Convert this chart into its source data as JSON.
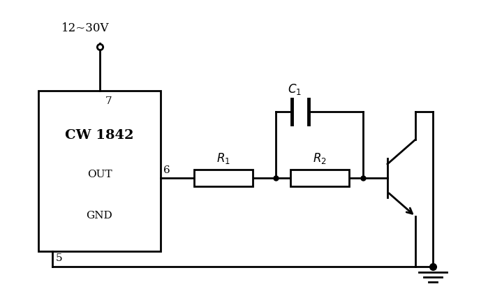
{
  "background_color": "#ffffff",
  "line_color": "#000000",
  "line_width": 2.0,
  "fig_width": 7.09,
  "fig_height": 4.37,
  "dpi": 100,
  "ic_label": "CW 1842",
  "ic_out_label": "OUT",
  "ic_gnd_label": "GND",
  "pin7_label": "7",
  "pin6_label": "6",
  "pin5_label": "5",
  "vcc_label": "12~30V",
  "r1_label": "$R_1$",
  "r2_label": "$R_2$",
  "c1_label": "$C_1$"
}
